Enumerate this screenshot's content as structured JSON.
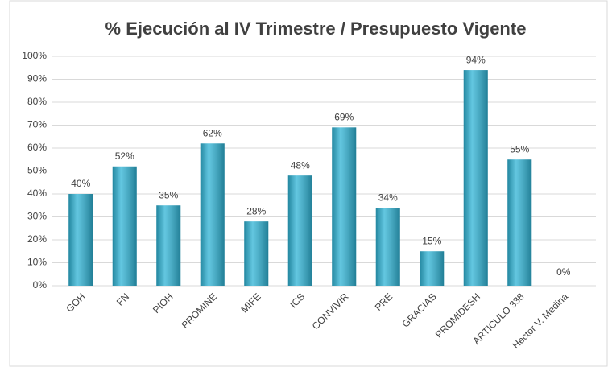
{
  "chart_data": {
    "type": "bar",
    "title": "% Ejecución al IV Trimestre / Presupuesto Vigente",
    "categories": [
      "GOH",
      "FN",
      "PIOH",
      "PROMINE",
      "MIFE",
      "ICS",
      "CONVIVIR",
      "PRE",
      "GRACIAS",
      "PROMIDESH",
      "ARTÍCULO 338",
      "Hector V. Medina"
    ],
    "values": [
      40,
      52,
      35,
      62,
      28,
      48,
      69,
      34,
      15,
      94,
      55,
      0
    ],
    "value_labels": [
      "40%",
      "52%",
      "35%",
      "62%",
      "28%",
      "48%",
      "69%",
      "34%",
      "15%",
      "94%",
      "55%",
      "0%"
    ],
    "color": "#2fb4d6",
    "ylim": [
      0,
      100
    ],
    "yticks": [
      {
        "value": 0,
        "label": "0%"
      },
      {
        "value": 10,
        "label": "10%"
      },
      {
        "value": 20,
        "label": "20%"
      },
      {
        "value": 30,
        "label": "30%"
      },
      {
        "value": 40,
        "label": "40%"
      },
      {
        "value": 50,
        "label": "50%"
      },
      {
        "value": 60,
        "label": "60%"
      },
      {
        "value": 70,
        "label": "70%"
      },
      {
        "value": 80,
        "label": "80%"
      },
      {
        "value": 90,
        "label": "90%"
      },
      {
        "value": 100,
        "label": "100%"
      }
    ],
    "grid": true
  }
}
